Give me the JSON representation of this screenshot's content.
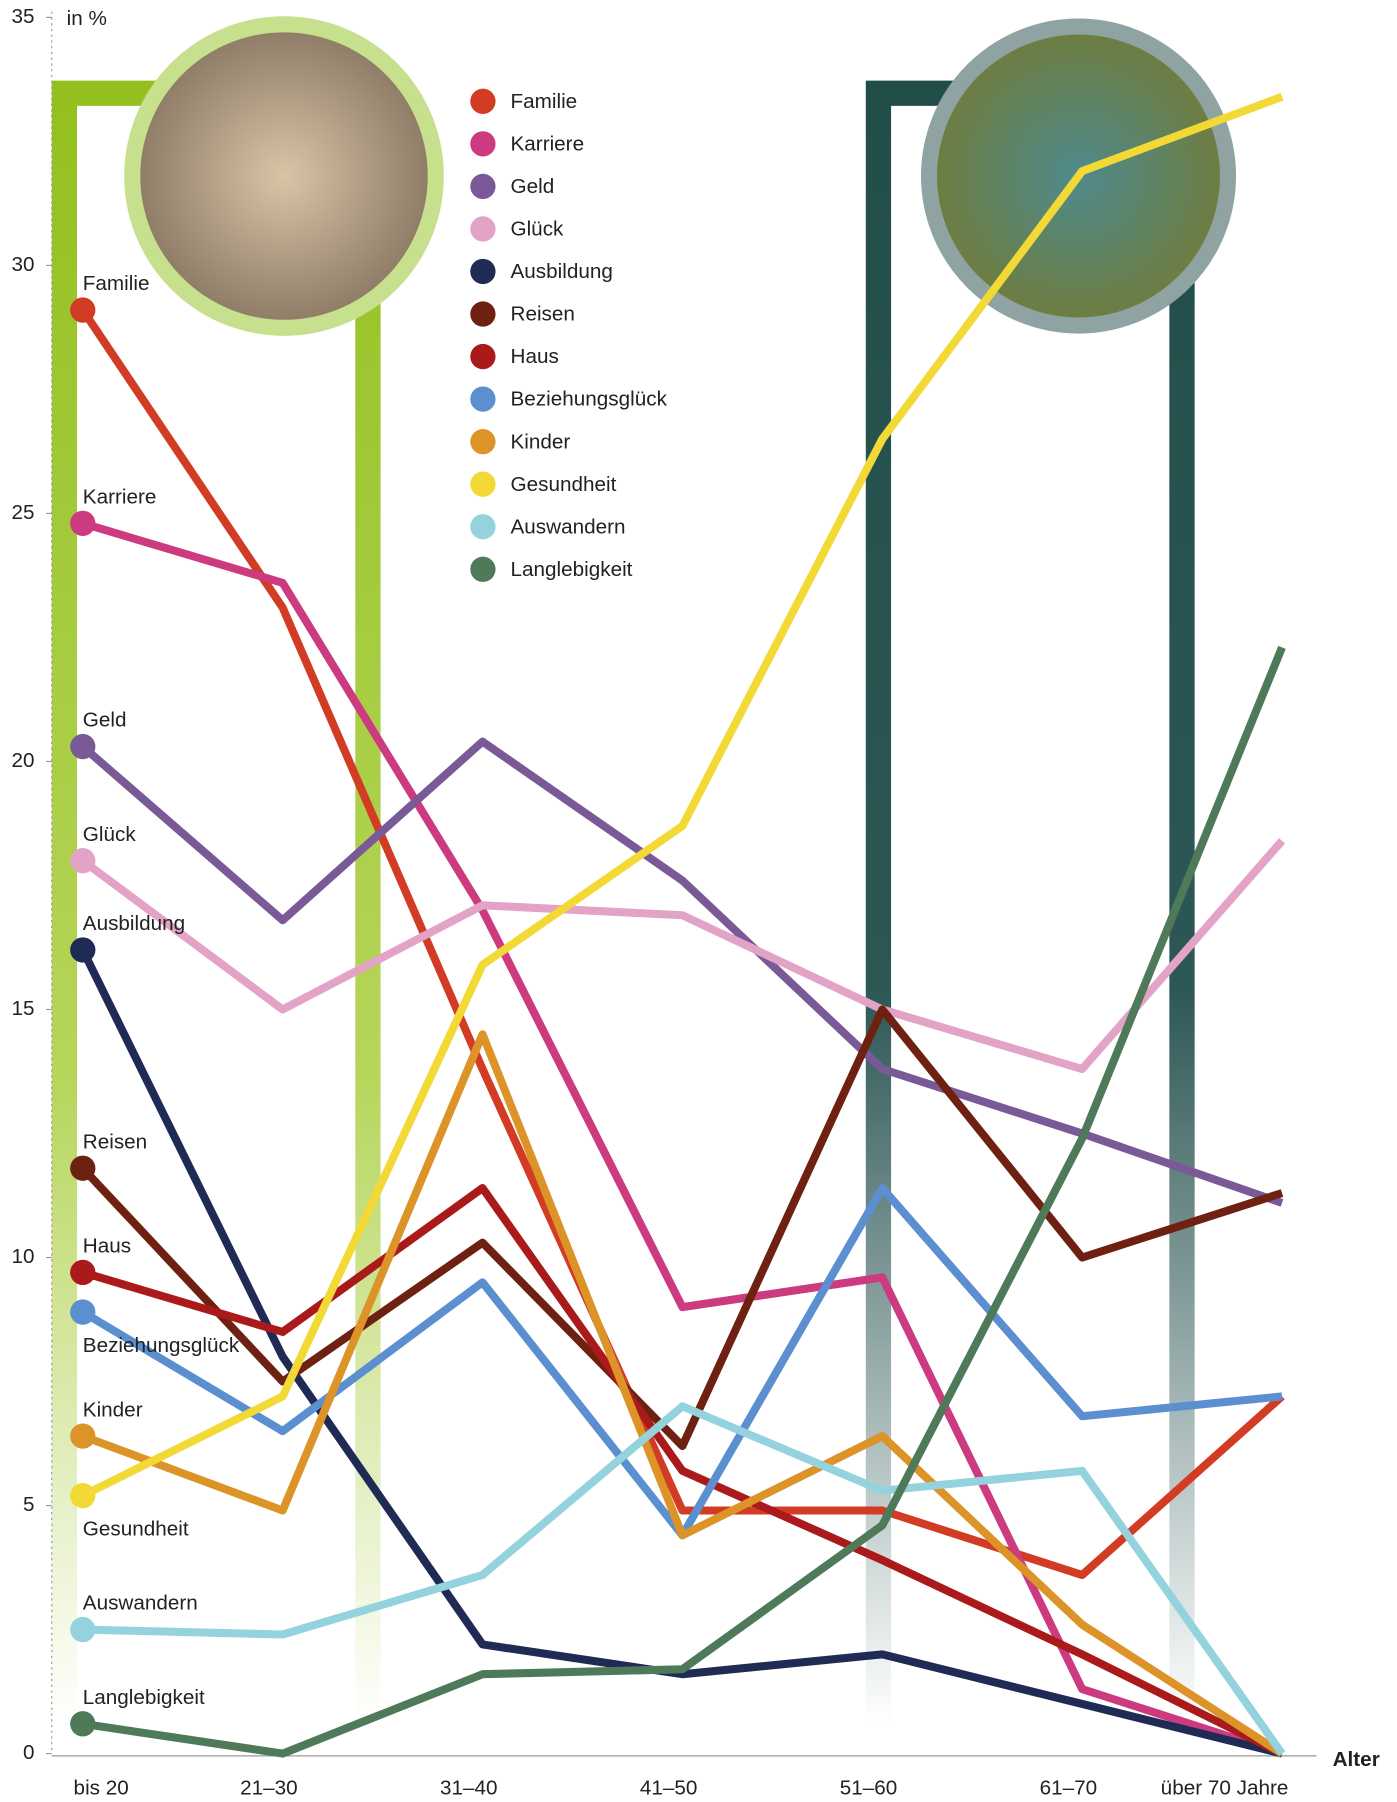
{
  "chart_data": {
    "type": "line",
    "y_label": "in %",
    "x_label": "Alter",
    "categories": [
      "bis 20",
      "21–30",
      "31–40",
      "41–50",
      "51–60",
      "61–70",
      "über 70 Jahre"
    ],
    "ylim": [
      0,
      35
    ],
    "yticks": [
      0,
      5,
      10,
      15,
      20,
      25,
      30,
      35
    ],
    "series": [
      {
        "name": "Familie",
        "color": "#d23b24",
        "values": [
          29.1,
          23.1,
          13.8,
          4.9,
          4.9,
          3.6,
          7.2
        ]
      },
      {
        "name": "Karriere",
        "color": "#cc3a7f",
        "values": [
          24.8,
          23.6,
          17.0,
          9.0,
          9.6,
          1.3,
          0
        ]
      },
      {
        "name": "Geld",
        "color": "#7a5a96",
        "values": [
          20.3,
          16.8,
          20.4,
          17.6,
          13.8,
          12.5,
          11.1
        ]
      },
      {
        "name": "Glück",
        "color": "#e3a3c6",
        "values": [
          18.0,
          15.0,
          17.1,
          16.9,
          15.0,
          13.8,
          18.4
        ]
      },
      {
        "name": "Ausbildung",
        "color": "#1f2a55",
        "values": [
          16.2,
          8.0,
          2.2,
          1.6,
          2.0,
          1.0,
          0
        ]
      },
      {
        "name": "Reisen",
        "color": "#6e2111",
        "values": [
          11.8,
          7.5,
          10.3,
          6.2,
          15.0,
          10.0,
          11.3
        ]
      },
      {
        "name": "Haus",
        "color": "#aa1a1a",
        "values": [
          9.7,
          8.5,
          11.4,
          5.7,
          3.9,
          2.0,
          0
        ]
      },
      {
        "name": "Beziehungsglück",
        "color": "#5b8fd0",
        "values": [
          8.9,
          6.5,
          9.5,
          4.4,
          11.4,
          6.8,
          7.2
        ]
      },
      {
        "name": "Kinder",
        "color": "#dc9428",
        "values": [
          6.4,
          4.9,
          14.5,
          4.4,
          6.4,
          2.6,
          0
        ]
      },
      {
        "name": "Gesundheit",
        "color": "#f2d935",
        "values": [
          5.2,
          7.2,
          15.9,
          18.7,
          26.5,
          31.9,
          33.4
        ]
      },
      {
        "name": "Auswandern",
        "color": "#94d3de",
        "values": [
          2.5,
          2.4,
          3.6,
          7.0,
          5.3,
          5.7,
          0
        ]
      },
      {
        "name": "Langlebigkeit",
        "color": "#4e7a5a",
        "values": [
          0.6,
          0.0,
          1.6,
          1.7,
          4.6,
          12.4,
          22.3
        ]
      }
    ]
  }
}
